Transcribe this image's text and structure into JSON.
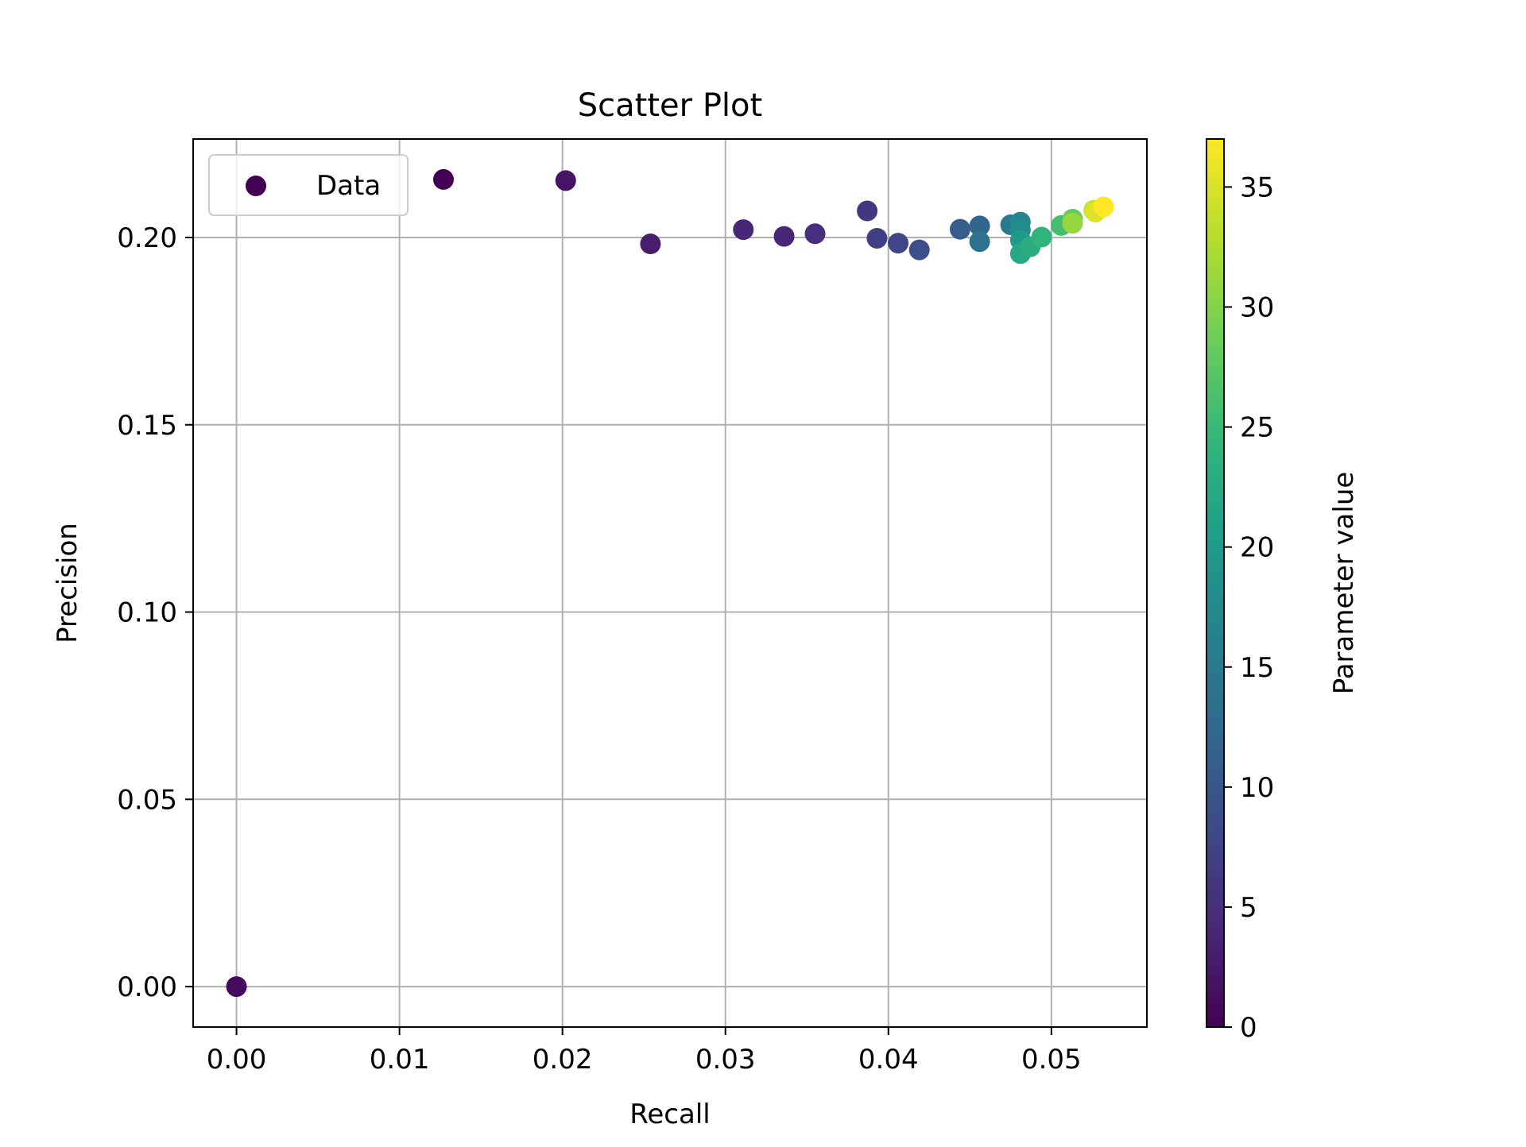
{
  "chart_data": {
    "type": "scatter",
    "title": "Scatter Plot",
    "xlabel": "Recall",
    "ylabel": "Precision",
    "xlim": [
      -0.00266,
      0.05586
    ],
    "ylim": [
      -0.0108,
      0.2263
    ],
    "xticks": [
      0.0,
      0.01,
      0.02,
      0.03,
      0.04,
      0.05
    ],
    "xtick_labels": [
      "0.00",
      "0.01",
      "0.02",
      "0.03",
      "0.04",
      "0.05"
    ],
    "yticks": [
      0.0,
      0.05,
      0.1,
      0.15,
      0.2
    ],
    "ytick_labels": [
      "0.00",
      "0.05",
      "0.10",
      "0.15",
      "0.20"
    ],
    "grid": true,
    "legend": {
      "placement": "top-left",
      "entries": [
        "Data"
      ],
      "marker_color": "#440154"
    },
    "colorbar": {
      "label": "Parameter value",
      "range": [
        0,
        37
      ],
      "ticks": [
        0,
        5,
        10,
        15,
        20,
        25,
        30,
        35
      ],
      "tick_labels": [
        "0",
        "5",
        "10",
        "15",
        "20",
        "25",
        "30",
        "35"
      ],
      "colormap": "viridis"
    },
    "points": [
      {
        "x": 0.0,
        "y": 0.0,
        "c": 1
      },
      {
        "x": 0.0127,
        "y": 0.2155,
        "c": 0
      },
      {
        "x": 0.0202,
        "y": 0.2152,
        "c": 2
      },
      {
        "x": 0.0254,
        "y": 0.1983,
        "c": 3
      },
      {
        "x": 0.0311,
        "y": 0.2021,
        "c": 4
      },
      {
        "x": 0.0336,
        "y": 0.2003,
        "c": 4
      },
      {
        "x": 0.0355,
        "y": 0.201,
        "c": 5
      },
      {
        "x": 0.0387,
        "y": 0.2071,
        "c": 6
      },
      {
        "x": 0.0393,
        "y": 0.1998,
        "c": 7
      },
      {
        "x": 0.0406,
        "y": 0.1985,
        "c": 8
      },
      {
        "x": 0.0419,
        "y": 0.1967,
        "c": 9
      },
      {
        "x": 0.0444,
        "y": 0.2022,
        "c": 11
      },
      {
        "x": 0.0456,
        "y": 0.2031,
        "c": 12
      },
      {
        "x": 0.0456,
        "y": 0.1989,
        "c": 14
      },
      {
        "x": 0.0475,
        "y": 0.2034,
        "c": 15
      },
      {
        "x": 0.0481,
        "y": 0.2041,
        "c": 17
      },
      {
        "x": 0.0481,
        "y": 0.202,
        "c": 18
      },
      {
        "x": 0.0481,
        "y": 0.1993,
        "c": 20
      },
      {
        "x": 0.0481,
        "y": 0.1957,
        "c": 22
      },
      {
        "x": 0.0487,
        "y": 0.1975,
        "c": 23
      },
      {
        "x": 0.0494,
        "y": 0.2001,
        "c": 24
      },
      {
        "x": 0.0506,
        "y": 0.2032,
        "c": 26
      },
      {
        "x": 0.0513,
        "y": 0.2049,
        "c": 28
      },
      {
        "x": 0.0513,
        "y": 0.2038,
        "c": 31
      },
      {
        "x": 0.0526,
        "y": 0.2073,
        "c": 34
      },
      {
        "x": 0.0527,
        "y": 0.2068,
        "c": 35
      },
      {
        "x": 0.0532,
        "y": 0.2082,
        "c": 37
      }
    ]
  }
}
